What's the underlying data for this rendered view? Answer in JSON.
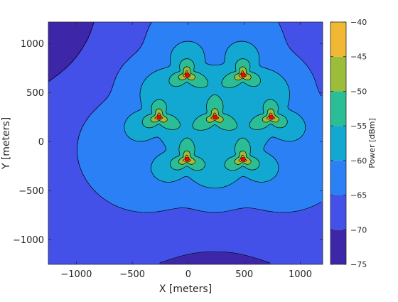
{
  "chart_data": {
    "type": "heatmap",
    "title": "",
    "xlabel": "X [meters]",
    "ylabel": "Y [meters]",
    "xlim": [
      -1250,
      1200
    ],
    "ylim": [
      -1250,
      1220
    ],
    "xticks": [
      -1000,
      -500,
      0,
      500,
      1000
    ],
    "yticks": [
      -1000,
      -500,
      0,
      500,
      1000
    ],
    "colorbar": {
      "label": "Power [dBm]",
      "min": -75,
      "max": -40,
      "ticks": [
        -40,
        -45,
        -50,
        -55,
        -60,
        -65,
        -70,
        -75
      ]
    },
    "contour_levels_dbm": [
      -75,
      -70,
      -65,
      -60,
      -55,
      -50,
      -45,
      -40
    ],
    "level_colors": [
      "#3e26a8",
      "#4351e8",
      "#2c80f5",
      "#13a8d2",
      "#2bbe96",
      "#9cbd3a",
      "#f1b833",
      "#f9fb0e"
    ],
    "transmitters": [
      {
        "x": -10,
        "y": 680,
        "orientation_deg": 90
      },
      {
        "x": 490,
        "y": 680,
        "orientation_deg": 90
      },
      {
        "x": -260,
        "y": 250,
        "orientation_deg": 90
      },
      {
        "x": 240,
        "y": 250,
        "orientation_deg": 90
      },
      {
        "x": 740,
        "y": 250,
        "orientation_deg": 90
      },
      {
        "x": -10,
        "y": -180,
        "orientation_deg": 90
      },
      {
        "x": 490,
        "y": -180,
        "orientation_deg": 90
      }
    ],
    "transmitter_color": "#ff0000",
    "grid": false,
    "legend": "colorbar-right"
  }
}
